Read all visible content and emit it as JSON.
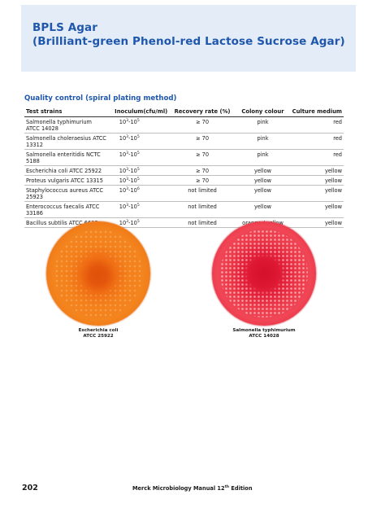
{
  "header": {
    "title_line1": "BPLS Agar",
    "title_line2": "(Brilliant-green Phenol-red Lactose Sucrose Agar)",
    "background_color": "#e4ecf7",
    "title_color": "#1f57ad"
  },
  "qc": {
    "heading": "Quality control (spiral plating method)",
    "columns": [
      "Test strains",
      "Inoculum(cfu/ml)",
      "Recovery rate (%)",
      "Colony colour",
      "Culture medium"
    ],
    "rows": [
      {
        "strain_line1": "Salmonella typhimurium",
        "strain_line2": "ATCC 14028",
        "inoc_base": "10",
        "inoc_exp1": "3",
        "inoc_sep": "-10",
        "inoc_exp2": "5",
        "recovery": "≥ 70",
        "colony": "pink",
        "medium": "red"
      },
      {
        "strain_line1": "Salmonella choleraesius ATCC 13312",
        "strain_line2": "",
        "inoc_base": "10",
        "inoc_exp1": "3",
        "inoc_sep": "-10",
        "inoc_exp2": "5",
        "recovery": "≥ 70",
        "colony": "pink",
        "medium": "red"
      },
      {
        "strain_line1": "Salmonella enteritidis NCTC 5188",
        "strain_line2": "",
        "inoc_base": "10",
        "inoc_exp1": "3",
        "inoc_sep": "-10",
        "inoc_exp2": "5",
        "recovery": "≥ 70",
        "colony": "pink",
        "medium": "red"
      },
      {
        "strain_line1": "Escherichia coli ATCC 25922",
        "strain_line2": "",
        "inoc_base": "10",
        "inoc_exp1": "3",
        "inoc_sep": "-10",
        "inoc_exp2": "5",
        "recovery": "≥ 70",
        "colony": "yellow",
        "medium": "yellow"
      },
      {
        "strain_line1": "Proteus vulgaris ATCC 13315",
        "strain_line2": "",
        "inoc_base": "10",
        "inoc_exp1": "3",
        "inoc_sep": "-10",
        "inoc_exp2": "5",
        "recovery": "≥ 70",
        "colony": "yellow",
        "medium": "yellow"
      },
      {
        "strain_line1": "Staphylococcus aureus ATCC 25923",
        "strain_line2": "",
        "inoc_base": "10",
        "inoc_exp1": "3",
        "inoc_sep": "-10",
        "inoc_exp2": "6",
        "recovery": "not limited",
        "colony": "yellow",
        "medium": "yellow"
      },
      {
        "strain_line1": "Enterococcus faecalis ATCC 33186",
        "strain_line2": "",
        "inoc_base": "10",
        "inoc_exp1": "3",
        "inoc_sep": "-10",
        "inoc_exp2": "5",
        "recovery": "not limited",
        "colony": "yellow",
        "medium": "yellow"
      },
      {
        "strain_line1": "Bacillus subtilis ATCC 6633",
        "strain_line2": "",
        "inoc_base": "10",
        "inoc_exp1": "3",
        "inoc_sep": "-10",
        "inoc_exp2": "5",
        "recovery": "not limited",
        "colony": "orange / yellow",
        "medium": "yellow"
      }
    ]
  },
  "plates": [
    {
      "caption_line1": "Escherichia coli",
      "caption_line2": "ATCC 25922",
      "color": "#f4801c"
    },
    {
      "caption_line1": "Salmonella typhimurium",
      "caption_line2": "ATCC 14028",
      "color": "#e4203a"
    }
  ],
  "footer": {
    "page_number": "202",
    "title_prefix": "Merck Microbiology Manual 12",
    "title_sup": "th",
    "title_suffix": " Edition"
  }
}
